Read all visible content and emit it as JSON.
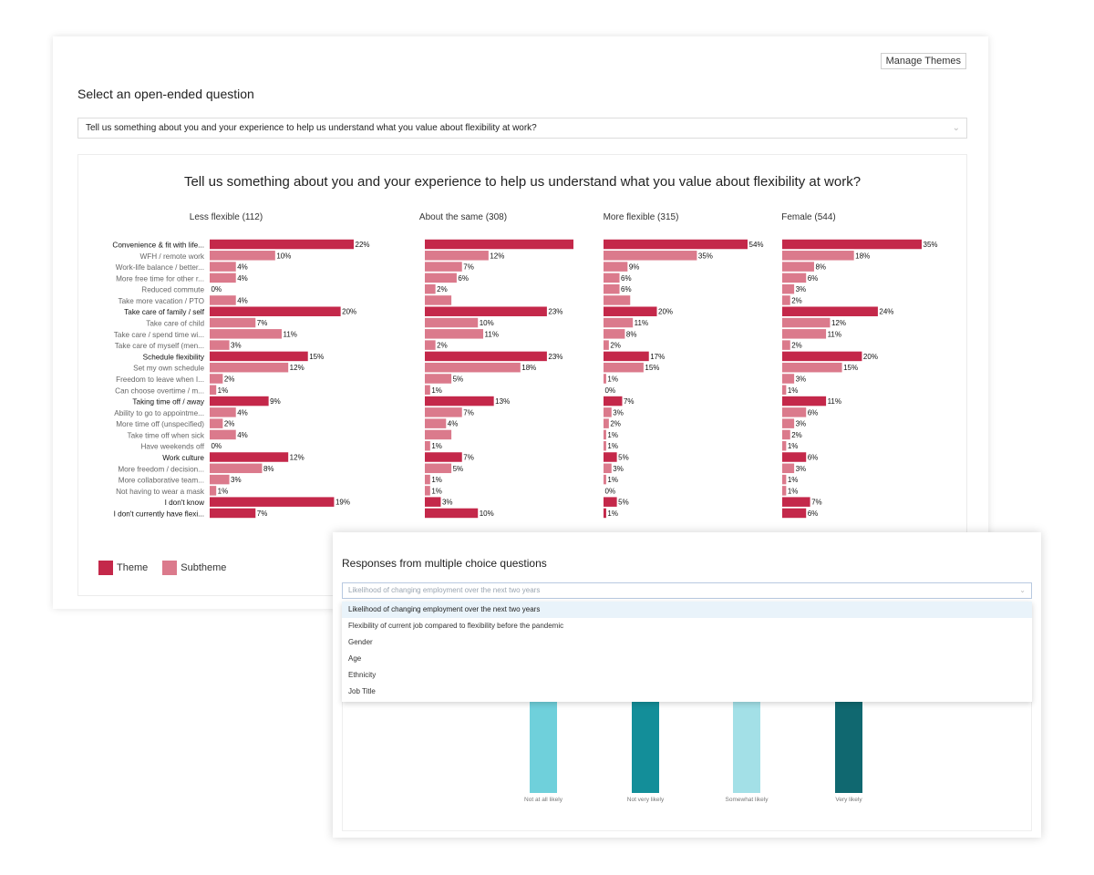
{
  "header": {
    "manage_themes": "Manage Themes",
    "section_title": "Select an open-ended question",
    "selected_question": "Tell us something about you and your experience to help us understand what you value about flexibility at work?"
  },
  "legend": {
    "theme": "Theme",
    "subtheme": "Subtheme",
    "theme_color": "#c4284a",
    "subtheme_color": "#db7a8c"
  },
  "chart_data": {
    "type": "bar",
    "orientation": "horizontal",
    "title": "Tell us something about you and your experience to help us understand what you value about flexibility at work?",
    "categories": [
      {
        "label": "Convenience & fit with life...",
        "level": "theme"
      },
      {
        "label": "WFH / remote work",
        "level": "subtheme"
      },
      {
        "label": "Work-life balance / better...",
        "level": "subtheme"
      },
      {
        "label": "More free time for other r...",
        "level": "subtheme"
      },
      {
        "label": "Reduced commute",
        "level": "subtheme"
      },
      {
        "label": "Take more vacation / PTO",
        "level": "subtheme"
      },
      {
        "label": "Take care of family / self",
        "level": "theme"
      },
      {
        "label": "Take care of child",
        "level": "subtheme"
      },
      {
        "label": "Take care / spend time wi...",
        "level": "subtheme"
      },
      {
        "label": "Take care of myself (men...",
        "level": "subtheme"
      },
      {
        "label": "Schedule flexibility",
        "level": "theme"
      },
      {
        "label": "Set my own schedule",
        "level": "subtheme"
      },
      {
        "label": "Freedom to leave when I...",
        "level": "subtheme"
      },
      {
        "label": "Can choose overtime / m...",
        "level": "subtheme"
      },
      {
        "label": "Taking time off / away",
        "level": "theme"
      },
      {
        "label": "Ability to go to appointme...",
        "level": "subtheme"
      },
      {
        "label": "More time off (unspecified)",
        "level": "subtheme"
      },
      {
        "label": "Take time off when sick",
        "level": "subtheme"
      },
      {
        "label": "Have weekends off",
        "level": "subtheme"
      },
      {
        "label": "Work culture",
        "level": "theme"
      },
      {
        "label": "More freedom / decision...",
        "level": "subtheme"
      },
      {
        "label": "More collaborative team...",
        "level": "subtheme"
      },
      {
        "label": "Not having to wear a mask",
        "level": "subtheme"
      },
      {
        "label": "I don't know",
        "level": "theme"
      },
      {
        "label": "I don't currently have flexi...",
        "level": "theme"
      }
    ],
    "series": [
      {
        "name": "Less flexible (112)",
        "values": [
          22,
          10,
          4,
          4,
          0,
          4,
          20,
          7,
          11,
          3,
          15,
          12,
          2,
          1,
          9,
          4,
          2,
          4,
          0,
          12,
          8,
          3,
          1,
          19,
          7
        ],
        "labels": [
          "22%",
          "10%",
          "4%",
          "4%",
          "0%",
          "4%",
          "20%",
          "7%",
          "11%",
          "3%",
          "15%",
          "12%",
          "2%",
          "1%",
          "9%",
          "4%",
          "2%",
          "4%",
          "0%",
          "12%",
          "8%",
          "3%",
          "1%",
          "19%",
          "7%"
        ],
        "xmax": 22
      },
      {
        "name": "About the same (308)",
        "values": [
          28,
          12,
          7,
          6,
          2,
          5,
          23,
          10,
          11,
          2,
          23,
          18,
          5,
          1,
          13,
          7,
          4,
          5,
          1,
          7,
          5,
          1,
          1,
          3,
          10
        ],
        "labels": [
          "",
          "12%",
          "7%",
          "6%",
          "2%",
          "",
          "23%",
          "10%",
          "11%",
          "2%",
          "23%",
          "18%",
          "5%",
          "1%",
          "13%",
          "7%",
          "4%",
          "",
          "1%",
          "7%",
          "5%",
          "1%",
          "1%",
          "3%",
          "10%"
        ],
        "xmax": 28
      },
      {
        "name": "More flexible (315)",
        "values": [
          54,
          35,
          9,
          6,
          6,
          10,
          20,
          11,
          8,
          2,
          17,
          15,
          1,
          0,
          7,
          3,
          2,
          1,
          1,
          5,
          3,
          1,
          0,
          5,
          1
        ],
        "labels": [
          "54%",
          "35%",
          "9%",
          "6%",
          "6%",
          "",
          "20%",
          "11%",
          "8%",
          "2%",
          "17%",
          "15%",
          "1%",
          "0%",
          "7%",
          "3%",
          "2%",
          "1%",
          "1%",
          "5%",
          "3%",
          "1%",
          "0%",
          "5%",
          "1%"
        ],
        "xmax": 54
      },
      {
        "name": "Female (544)",
        "values": [
          35,
          18,
          8,
          6,
          3,
          2,
          24,
          12,
          11,
          2,
          20,
          15,
          3,
          1,
          11,
          6,
          3,
          2,
          1,
          6,
          3,
          1,
          1,
          7,
          6
        ],
        "labels": [
          "35%",
          "18%",
          "8%",
          "6%",
          "3%",
          "2%",
          "24%",
          "12%",
          "11%",
          "2%",
          "20%",
          "15%",
          "3%",
          "1%",
          "11%",
          "6%",
          "3%",
          "2%",
          "1%",
          "6%",
          "3%",
          "1%",
          "1%",
          "7%",
          "6%"
        ],
        "xmax": 35
      }
    ]
  },
  "multiple_choice": {
    "title": "Responses from multiple choice questions",
    "placeholder": "Likelihood of changing employment over the next two years",
    "options": [
      "Likelihood of changing employment over the next two years",
      "Flexibility of current job compared to flexibility before the pandemic",
      "Gender",
      "Age",
      "Ethnicity",
      "Job Title"
    ],
    "chart": {
      "type": "bar",
      "categories": [
        "Not at all likely",
        "Not very likely",
        "Somewhat likely",
        "Very likely"
      ],
      "colors": [
        "#6fd0db",
        "#138e99",
        "#a3e0e7",
        "#106870"
      ]
    }
  }
}
